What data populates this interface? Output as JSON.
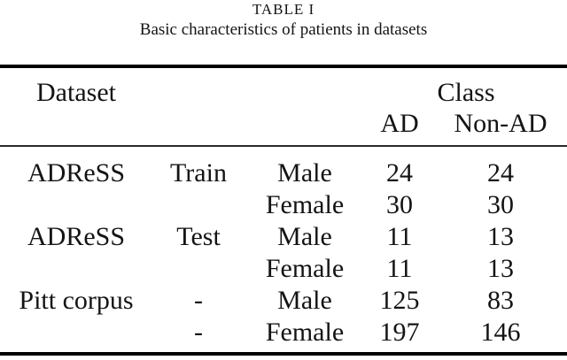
{
  "caption": {
    "title": "TABLE I",
    "subtitle": "Basic characteristics of patients in datasets"
  },
  "colors": {
    "text": "#141414",
    "rule": "#000000",
    "background": "#ffffff"
  },
  "table": {
    "header": {
      "dataset": "Dataset",
      "class_group": "Class",
      "ad": "AD",
      "non_ad": "Non-AD"
    },
    "rows": [
      {
        "cells": [
          "ADReSS",
          "Train",
          "Male",
          "24",
          "24"
        ]
      },
      {
        "cells": [
          "",
          "",
          "Female",
          "30",
          "30"
        ]
      },
      {
        "cells": [
          "ADReSS",
          "Test",
          "Male",
          "11",
          "13"
        ]
      },
      {
        "cells": [
          "",
          "",
          "Female",
          "11",
          "13"
        ]
      },
      {
        "cells": [
          "Pitt corpus",
          "-",
          "Male",
          "125",
          "83"
        ]
      },
      {
        "cells": [
          "",
          "-",
          "Female",
          "197",
          "146"
        ]
      }
    ]
  }
}
